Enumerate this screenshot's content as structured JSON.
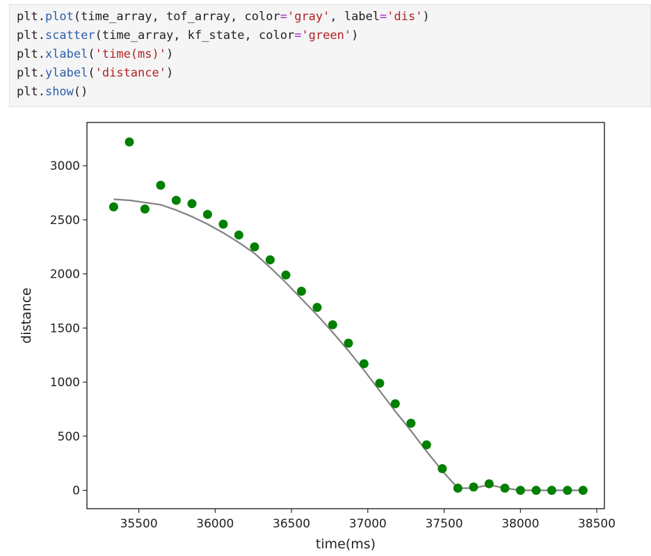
{
  "code": {
    "lines": [
      [
        {
          "t": "plt.",
          "c": ""
        },
        {
          "t": "plot",
          "c": "fn"
        },
        {
          "t": "(time_array, tof_array, color",
          "c": ""
        },
        {
          "t": "=",
          "c": "kw"
        },
        {
          "t": "'gray'",
          "c": "str"
        },
        {
          "t": ", label",
          "c": ""
        },
        {
          "t": "=",
          "c": "kw"
        },
        {
          "t": "'dis'",
          "c": "str"
        },
        {
          "t": ")",
          "c": ""
        }
      ],
      [
        {
          "t": "plt.",
          "c": ""
        },
        {
          "t": "scatter",
          "c": "fn"
        },
        {
          "t": "(time_array, kf_state, color",
          "c": ""
        },
        {
          "t": "=",
          "c": "kw"
        },
        {
          "t": "'green'",
          "c": "str"
        },
        {
          "t": ")",
          "c": ""
        }
      ],
      [
        {
          "t": "plt.",
          "c": ""
        },
        {
          "t": "xlabel",
          "c": "fn"
        },
        {
          "t": "(",
          "c": ""
        },
        {
          "t": "'time(ms)'",
          "c": "str"
        },
        {
          "t": ")",
          "c": ""
        }
      ],
      [
        {
          "t": "plt.",
          "c": ""
        },
        {
          "t": "ylabel",
          "c": "fn"
        },
        {
          "t": "(",
          "c": ""
        },
        {
          "t": "'distance'",
          "c": "str"
        },
        {
          "t": ")",
          "c": ""
        }
      ],
      [
        {
          "t": "plt.",
          "c": ""
        },
        {
          "t": "show",
          "c": "fn"
        },
        {
          "t": "()",
          "c": ""
        }
      ]
    ]
  },
  "chart_data": {
    "type": "line",
    "title": "",
    "xlabel": "time(ms)",
    "ylabel": "distance",
    "xlim": [
      35160,
      38550
    ],
    "ylim": [
      -170,
      3400
    ],
    "xticks": [
      35500,
      36000,
      36500,
      37000,
      37500,
      38000,
      38500
    ],
    "yticks": [
      0,
      500,
      1000,
      1500,
      2000,
      2500,
      3000
    ],
    "grid": false,
    "legend": false,
    "series": [
      {
        "type": "line",
        "color": "#808080",
        "x": [
          35335,
          35438,
          35540,
          35643,
          35745,
          35848,
          35950,
          36053,
          36155,
          36258,
          36360,
          36463,
          36565,
          36668,
          36770,
          36873,
          36975,
          37078,
          37180,
          37283,
          37385,
          37488,
          37590,
          37693,
          37795,
          37898,
          38000,
          38103,
          38205,
          38308,
          38410
        ],
        "y": [
          2690,
          2680,
          2660,
          2640,
          2590,
          2530,
          2460,
          2380,
          2290,
          2190,
          2060,
          1920,
          1770,
          1620,
          1460,
          1290,
          1110,
          920,
          730,
          550,
          360,
          180,
          20,
          20,
          50,
          20,
          0,
          0,
          0,
          0,
          0
        ]
      },
      {
        "type": "scatter",
        "color": "#008000",
        "x": [
          35335,
          35438,
          35540,
          35643,
          35745,
          35848,
          35950,
          36053,
          36155,
          36258,
          36360,
          36463,
          36565,
          36668,
          36770,
          36873,
          36975,
          37078,
          37180,
          37283,
          37385,
          37488,
          37590,
          37693,
          37795,
          37898,
          38000,
          38103,
          38205,
          38308,
          38410
        ],
        "y": [
          2620,
          3220,
          2600,
          2820,
          2680,
          2650,
          2550,
          2460,
          2360,
          2250,
          2130,
          1990,
          1840,
          1690,
          1530,
          1360,
          1170,
          990,
          800,
          620,
          420,
          200,
          20,
          30,
          60,
          20,
          0,
          0,
          0,
          0,
          0
        ]
      }
    ]
  }
}
